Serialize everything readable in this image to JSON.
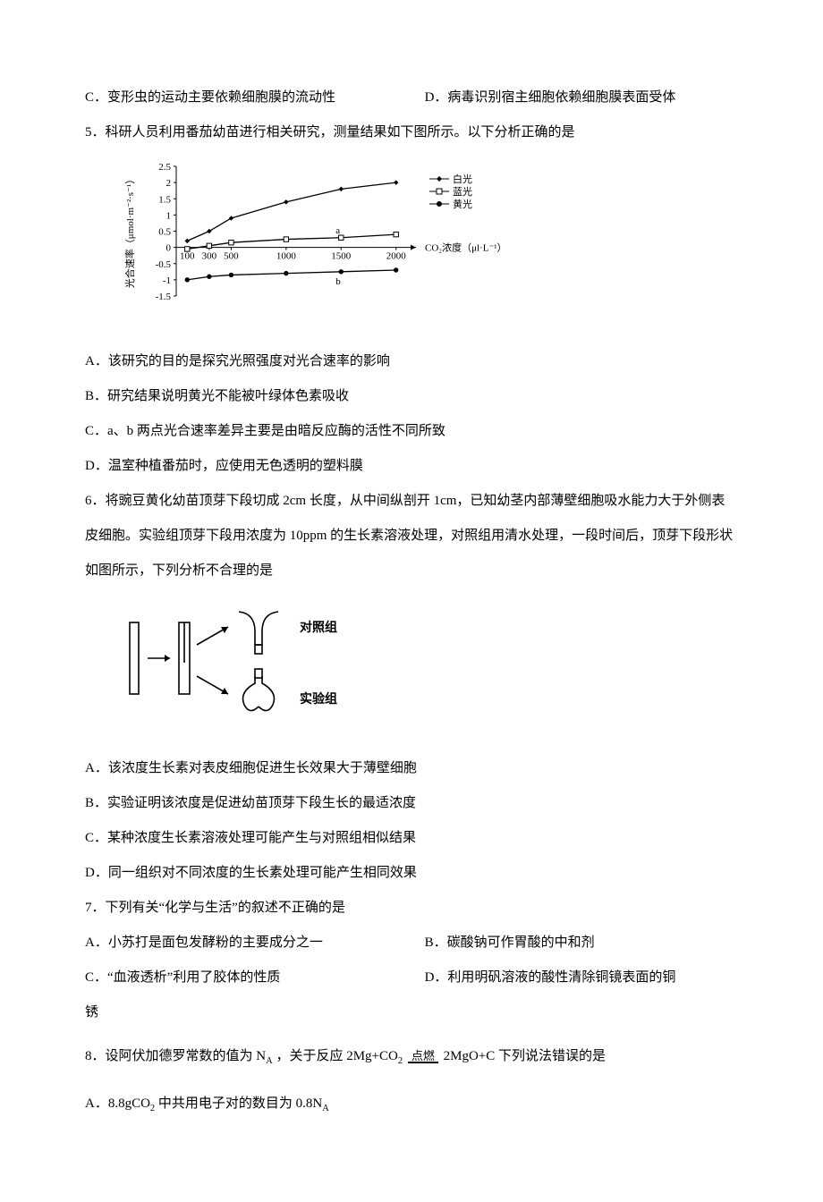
{
  "line_c": "C．变形虫的运动主要依赖细胞膜的流动性",
  "line_d": "D．病毒识别宿主细胞依赖细胞膜表面受体",
  "q5_stem": "5．科研人员利用番茄幼苗进行相关研究，测量结果如下图所示。以下分析正确的是",
  "q5_chart": {
    "type": "line",
    "y_label": "光合速率（μmol·m⁻²·s⁻¹）",
    "x_label": "CO₂浓度（μl·L⁻¹）",
    "y_ticks": [
      "-1.5",
      "-1",
      "-0.5",
      "0",
      "0.5",
      "1",
      "1.5",
      "2",
      "2.5"
    ],
    "y_vals": [
      -1.5,
      -1,
      -0.5,
      0,
      0.5,
      1,
      1.5,
      2,
      2.5
    ],
    "x_ticks": [
      "100",
      "300",
      "500",
      "1000",
      "1500",
      "2000"
    ],
    "x_vals": [
      100,
      300,
      500,
      1000,
      1500,
      2000
    ],
    "legend": [
      {
        "label": "白光",
        "marker": "diamond-filled",
        "color": "#000000"
      },
      {
        "label": "蓝光",
        "marker": "square-open",
        "color": "#000000"
      },
      {
        "label": "黄光",
        "marker": "circle-filled",
        "color": "#000000"
      }
    ],
    "series": {
      "white": [
        [
          100,
          0.2
        ],
        [
          300,
          0.5
        ],
        [
          500,
          0.9
        ],
        [
          1000,
          1.4
        ],
        [
          1500,
          1.8
        ],
        [
          2000,
          2.0
        ]
      ],
      "blue": [
        [
          100,
          -0.05
        ],
        [
          300,
          0.05
        ],
        [
          500,
          0.15
        ],
        [
          1000,
          0.25
        ],
        [
          1500,
          0.3
        ],
        [
          2000,
          0.4
        ]
      ],
      "yellow": [
        [
          100,
          -1.0
        ],
        [
          300,
          -0.9
        ],
        [
          500,
          -0.85
        ],
        [
          1000,
          -0.8
        ],
        [
          1500,
          -0.75
        ],
        [
          2000,
          -0.7
        ]
      ]
    },
    "annot_a": "a",
    "annot_b": "b",
    "stroke_w": 1.3,
    "marker_r": 2.7,
    "bg": "#ffffff",
    "axis_color": "#000000",
    "font_size": 11
  },
  "q5_A": "A．该研究的目的是探究光照强度对光合速率的影响",
  "q5_B": "B．研究结果说明黄光不能被叶绿体色素吸收",
  "q5_C": "C．a、b 两点光合速率差异主要是由暗反应酶的活性不同所致",
  "q5_D": "D．温室种植番茄时，应使用无色透明的塑料膜",
  "q6_stem": "6．将豌豆黄化幼苗顶芽下段切成 2cm 长度，从中间纵剖开 1cm，已知幼茎内部薄壁细胞吸水能力大于外侧表皮细胞。实验组顶芽下段用浓度为 10ppm 的生长素溶液处理，对照组用清水处理，一段时间后，顶芽下段形状如图所示，下列分析不合理的是",
  "q6_diag": {
    "type": "diagram",
    "label_ctrl": "对照组",
    "label_exp": "实验组",
    "stroke": "#000000",
    "stroke_w": 1.6
  },
  "q6_A": "A．该浓度生长素对表皮细胞促进生长效果大于薄壁细胞",
  "q6_B": "B．实验证明该浓度是促进幼苗顶芽下段生长的最适浓度",
  "q6_C": "C．某种浓度生长素溶液处理可能产生与对照组相似结果",
  "q6_D": "D．同一组织对不同浓度的生长素处理可能产生相同效果",
  "q7_stem": "7．下列有关“化学与生活”的叙述不正确的是",
  "q7_A": "A．小苏打是面包发酵粉的主要成分之一",
  "q7_B": "B．碳酸钠可作胃酸的中和剂",
  "q7_C": "C．“血液透析”利用了胶体的性质",
  "q7_D": "D．利用明矾溶液的酸性清除铜镜表面的铜",
  "q7_D2": "锈",
  "q8_prefix": "8．设阿伏加德罗常数的值为 N",
  "q8_sub": "A",
  "q8_mid": " ，关于反应 ",
  "q8_eq_l": "2Mg+CO",
  "q8_eq_cond": "点燃",
  "q8_eq_r": "2MgO+C",
  "q8_suffix": " 下列说法错误的是",
  "q8_A_pre": "A．8.8gCO",
  "q8_A_suf": " 中共用电子对的数目为 0.8N",
  "q8_A_sub": "A"
}
